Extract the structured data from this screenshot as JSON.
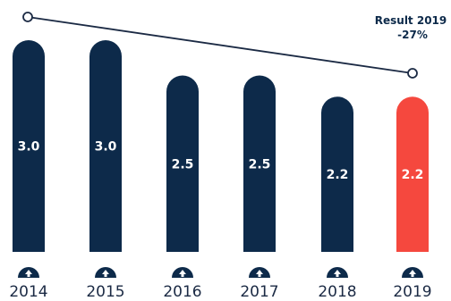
{
  "chart_data": {
    "type": "bar",
    "categories": [
      "2014",
      "2015",
      "2016",
      "2017",
      "2018",
      "2019"
    ],
    "values": [
      3.0,
      3.0,
      2.5,
      2.5,
      2.2,
      2.2
    ],
    "value_labels": [
      "3.0",
      "3.0",
      "2.5",
      "2.5",
      "2.2",
      "2.2"
    ],
    "ylim": [
      0,
      3.0
    ],
    "grid": false,
    "trend_line": {
      "from_category": "2014",
      "to_category": "2019"
    },
    "annotation": {
      "line1": "Result 2019",
      "line2": "-27%"
    },
    "colors": {
      "bar": "#0d2a4a",
      "highlight_bar": "#f5483e",
      "label": "#ffffff",
      "axis_text": "#1b2a44",
      "trend": "#1b2a44"
    },
    "highlight_index": 5,
    "icon": "arrow-up-icon"
  }
}
